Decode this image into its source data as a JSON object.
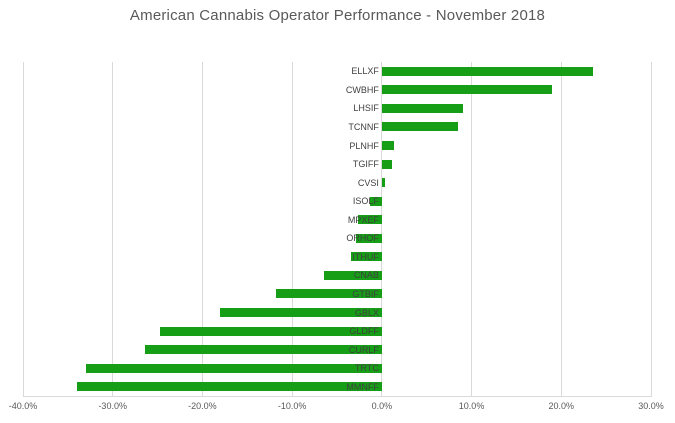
{
  "title": "American Cannabis Operator Performance - November 2018",
  "colors": {
    "bar": "#169e16",
    "gridline": "#d9d9d9",
    "title_text": "#595959",
    "axis_text": "#595959",
    "category_text": "#3f3f3f",
    "background": "#ffffff"
  },
  "chart_data": {
    "type": "bar",
    "orientation": "horizontal",
    "title": "American Cannabis Operator Performance - November 2018",
    "categories": [
      "ELLXF",
      "CWBHF",
      "LHSIF",
      "TCNNF",
      "PLNHF",
      "TGIFF",
      "CVSI",
      "ISOLF",
      "MPXEF",
      "ORHOF",
      "ITHUF",
      "CNAB",
      "GTBIF",
      "GBLX",
      "GLDFF",
      "CURLF",
      "TRTC",
      "MMNFF"
    ],
    "values": [
      23.5,
      19.0,
      9.0,
      8.5,
      1.3,
      1.1,
      0.4,
      -1.3,
      -2.7,
      -2.9,
      -3.4,
      -6.4,
      -11.8,
      -18.0,
      -24.7,
      -26.4,
      -33.0,
      -34.0
    ],
    "value_unit": "percent",
    "xlabel": "",
    "ylabel": "",
    "xlim": [
      -40,
      30
    ],
    "tick_values": [
      -40,
      -30,
      -20,
      -10,
      0,
      10,
      20,
      30
    ],
    "tick_labels": [
      "-40.0%",
      "-30.0%",
      "-20.0%",
      "-10.0%",
      "0.0%",
      "10.0%",
      "20.0%",
      "30.0%"
    ],
    "grid": true,
    "legend": false
  }
}
